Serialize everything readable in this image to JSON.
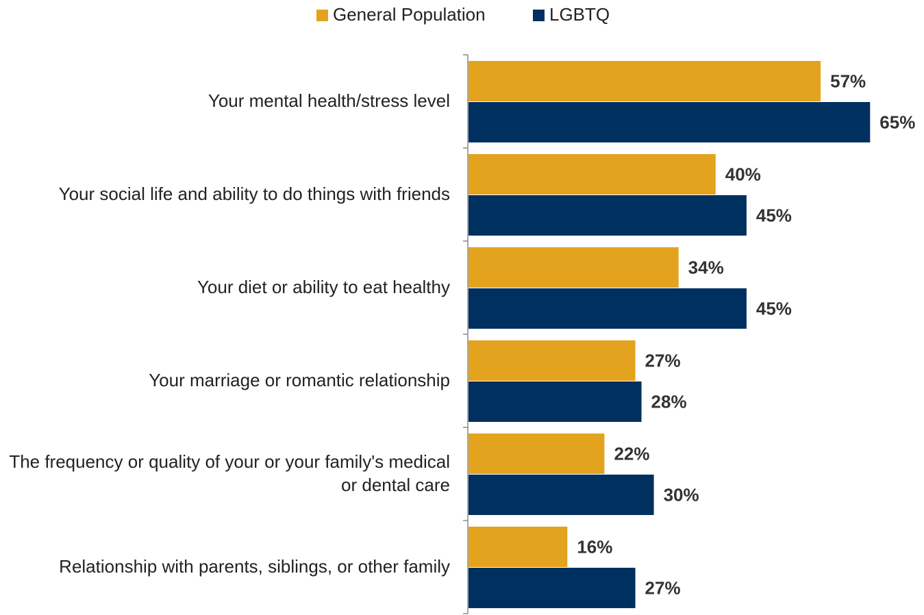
{
  "chart_data": {
    "type": "bar",
    "orientation": "horizontal",
    "categories": [
      "Your mental health/stress level",
      "Your social life and ability to do things with friends",
      "Your diet or ability to eat healthy",
      "Your marriage or romantic relationship",
      "The frequency or quality of your or your family's medical or dental care",
      "Relationship with parents, siblings, or other family"
    ],
    "series": [
      {
        "name": "General Population",
        "color": "#e3a31f",
        "values": [
          57,
          40,
          34,
          27,
          22,
          16
        ],
        "value_labels": [
          "57%",
          "40%",
          "34%",
          "27%",
          "22%",
          "16%"
        ]
      },
      {
        "name": "LGBTQ",
        "color": "#00305f",
        "values": [
          65,
          45,
          45,
          28,
          30,
          27
        ],
        "value_labels": [
          "65%",
          "45%",
          "45%",
          "28%",
          "30%",
          "27%"
        ]
      }
    ],
    "legend": "top"
  }
}
